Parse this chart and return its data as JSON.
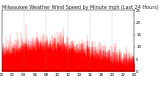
{
  "title": "Milwaukee Weather Wind Speed by Minute mph (Last 24 Hours)",
  "background_color": "#ffffff",
  "plot_background": "#ffffff",
  "line_color": "#ff0000",
  "grid_color": "#888888",
  "ylim": [
    0,
    25
  ],
  "xlim": [
    0,
    1440
  ],
  "num_points": 1440,
  "seed": 42,
  "title_fontsize": 3.5,
  "tick_fontsize": 2.8,
  "yticks": [
    0,
    5,
    10,
    15,
    20,
    25
  ],
  "xtick_step_min": 120,
  "grid_hours": [
    0,
    4,
    8,
    12,
    16,
    20,
    24
  ]
}
